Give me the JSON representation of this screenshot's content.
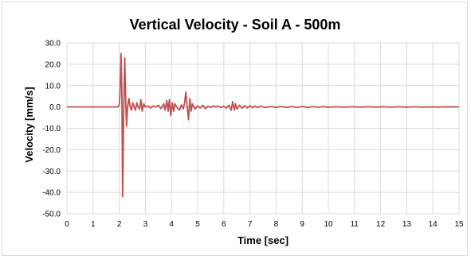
{
  "chart_data": {
    "type": "line",
    "title": "Vertical Velocity - Soil A - 500m",
    "xlabel": "Time [sec]",
    "ylabel": "Velocity [mm/s]",
    "xlim": [
      0,
      15
    ],
    "ylim": [
      -50,
      30
    ],
    "x_ticks": [
      "0",
      "1",
      "2",
      "3",
      "4",
      "5",
      "6",
      "7",
      "8",
      "9",
      "10",
      "11",
      "12",
      "13",
      "14",
      "15"
    ],
    "y_ticks": [
      "30.0",
      "20.0",
      "10.0",
      "0.0",
      "-10.0",
      "-20.0",
      "-30.0",
      "-40.0",
      "-50.0"
    ],
    "grid": true,
    "legend": "none",
    "series": [
      {
        "color": "#c0504d",
        "points": [
          [
            0,
            0
          ],
          [
            1.95,
            0
          ],
          [
            2.0,
            1.0
          ],
          [
            2.03,
            6
          ],
          [
            2.07,
            25
          ],
          [
            2.1,
            8
          ],
          [
            2.13,
            -42
          ],
          [
            2.17,
            -3
          ],
          [
            2.21,
            23
          ],
          [
            2.25,
            2
          ],
          [
            2.28,
            -9
          ],
          [
            2.32,
            0
          ],
          [
            2.37,
            4
          ],
          [
            2.42,
            0
          ],
          [
            2.47,
            -1.5
          ],
          [
            2.52,
            2
          ],
          [
            2.57,
            0
          ],
          [
            2.62,
            -1.5
          ],
          [
            2.67,
            2
          ],
          [
            2.72,
            0
          ],
          [
            2.78,
            -1
          ],
          [
            2.83,
            3.5
          ],
          [
            2.88,
            -2
          ],
          [
            2.94,
            1.5
          ],
          [
            3.0,
            0
          ],
          [
            3.1,
            0.5
          ],
          [
            3.2,
            -0.5
          ],
          [
            3.3,
            0.5
          ],
          [
            3.4,
            0
          ],
          [
            3.5,
            0.8
          ],
          [
            3.6,
            -0.8
          ],
          [
            3.7,
            1.5
          ],
          [
            3.75,
            -1.5
          ],
          [
            3.82,
            3
          ],
          [
            3.87,
            -2
          ],
          [
            3.92,
            3.5
          ],
          [
            3.97,
            -4
          ],
          [
            4.03,
            2
          ],
          [
            4.08,
            -2
          ],
          [
            4.13,
            1.5
          ],
          [
            4.2,
            0
          ],
          [
            4.3,
            -1.5
          ],
          [
            4.38,
            1
          ],
          [
            4.45,
            -1
          ],
          [
            4.5,
            2
          ],
          [
            4.55,
            7
          ],
          [
            4.6,
            0
          ],
          [
            4.65,
            -6
          ],
          [
            4.7,
            4
          ],
          [
            4.75,
            -2
          ],
          [
            4.8,
            1.5
          ],
          [
            4.9,
            -1
          ],
          [
            5.0,
            0.5
          ],
          [
            5.1,
            -0.5
          ],
          [
            5.2,
            0.8
          ],
          [
            5.3,
            -0.8
          ],
          [
            5.4,
            0.4
          ],
          [
            5.5,
            -0.3
          ],
          [
            5.6,
            0.5
          ],
          [
            5.7,
            0
          ],
          [
            5.8,
            0.3
          ],
          [
            5.9,
            -0.3
          ],
          [
            6.0,
            0.3
          ],
          [
            6.1,
            -0.5
          ],
          [
            6.2,
            0.8
          ],
          [
            6.28,
            -1.5
          ],
          [
            6.34,
            2.5
          ],
          [
            6.4,
            -1.5
          ],
          [
            6.45,
            1.5
          ],
          [
            6.5,
            -1
          ],
          [
            6.6,
            0.8
          ],
          [
            6.7,
            -0.6
          ],
          [
            6.8,
            0.6
          ],
          [
            6.9,
            -0.5
          ],
          [
            7.0,
            0.6
          ],
          [
            7.1,
            -0.4
          ],
          [
            7.2,
            0.4
          ],
          [
            7.3,
            -0.3
          ],
          [
            7.4,
            0.3
          ],
          [
            7.6,
            -0.2
          ],
          [
            7.8,
            0.2
          ],
          [
            8.0,
            -0.2
          ],
          [
            8.2,
            0.2
          ],
          [
            8.4,
            -0.2
          ],
          [
            8.6,
            0.2
          ],
          [
            8.8,
            -0.2
          ],
          [
            9.0,
            0.2
          ],
          [
            9.2,
            -0.2
          ],
          [
            9.4,
            0.15
          ],
          [
            9.6,
            -0.15
          ],
          [
            9.8,
            0.15
          ],
          [
            10.0,
            -0.15
          ],
          [
            10.3,
            0.1
          ],
          [
            10.6,
            -0.1
          ],
          [
            10.9,
            0.1
          ],
          [
            11.2,
            -0.1
          ],
          [
            11.5,
            0.1
          ],
          [
            11.8,
            -0.1
          ],
          [
            12.1,
            0.1
          ],
          [
            12.4,
            -0.1
          ],
          [
            12.7,
            0.1
          ],
          [
            13.0,
            -0.1
          ],
          [
            13.3,
            0.1
          ],
          [
            13.6,
            -0.1
          ],
          [
            13.9,
            0.05
          ],
          [
            14.2,
            -0.05
          ],
          [
            14.5,
            0.05
          ],
          [
            15,
            0
          ]
        ]
      }
    ]
  }
}
